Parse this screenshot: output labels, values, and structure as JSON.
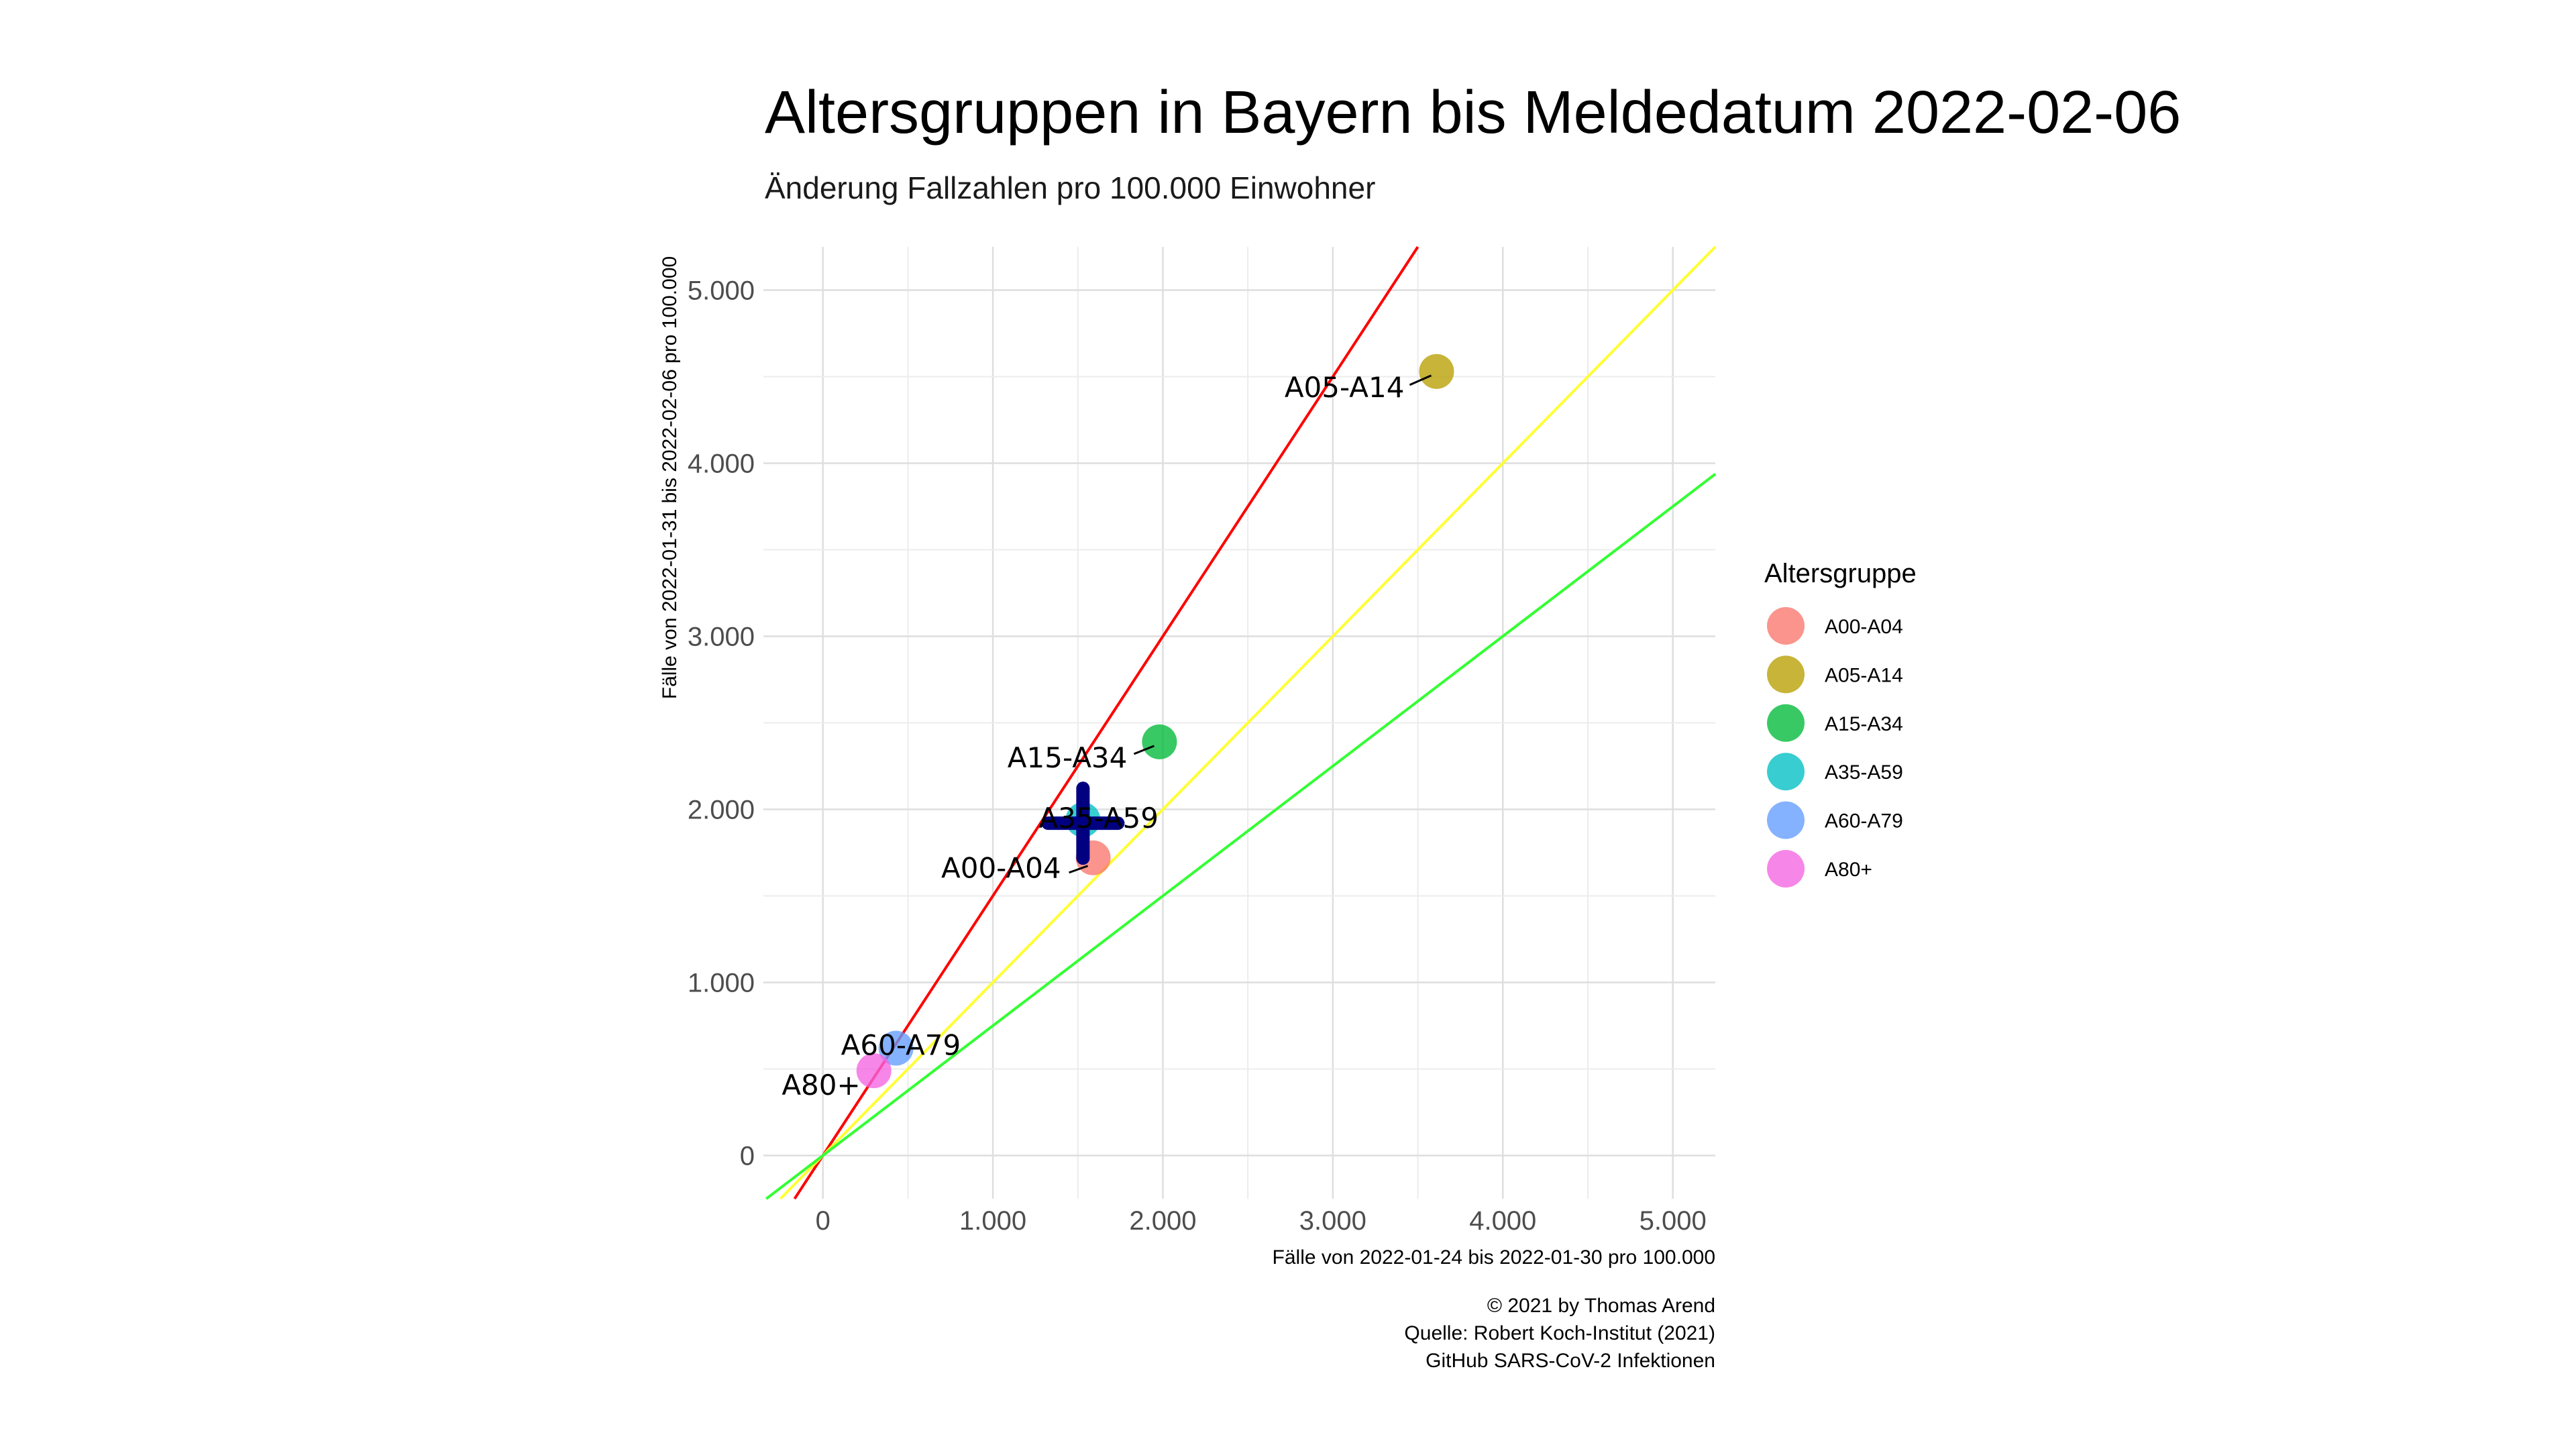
{
  "title": "Altersgruppen in Bayern bis Meldedatum 2022-02-06",
  "subtitle": "Änderung Fallzahlen pro 100.000 Einwohner",
  "caption": [
    "© 2021 by Thomas Arend",
    "Quelle: Robert Koch-Institut (2021)",
    "GitHub SARS-CoV-2 Infektionen"
  ],
  "chart_data": {
    "type": "scatter",
    "xlabel": "Fälle von 2022-01-24 bis 2022-01-30 pro 100.000",
    "ylabel": "Fälle von 2022-01-31 bis 2022-02-06 pro 100.000",
    "xlim": [
      -350,
      5250
    ],
    "ylim": [
      -250,
      5250
    ],
    "x_ticks": [
      0,
      1000,
      2000,
      3000,
      4000,
      5000
    ],
    "y_ticks": [
      0,
      1000,
      2000,
      3000,
      4000,
      5000
    ],
    "x_tick_labels": [
      "0",
      "1.000",
      "2.000",
      "3.000",
      "4.000",
      "5.000"
    ],
    "y_tick_labels": [
      "0",
      "1.000",
      "2.000",
      "3.000",
      "4.000",
      "5.000"
    ],
    "grid": true,
    "legend_title": "Altersgruppe",
    "legend_position": "right",
    "points": [
      {
        "name": "A00-A04",
        "x": 1590,
        "y": 1720,
        "color": "#F8766D"
      },
      {
        "name": "A05-A14",
        "x": 3610,
        "y": 4530,
        "color": "#B79F00"
      },
      {
        "name": "A15-A34",
        "x": 1980,
        "y": 2390,
        "color": "#00BA38"
      },
      {
        "name": "A35-A59",
        "x": 1530,
        "y": 1940,
        "color": "#00BFC4"
      },
      {
        "name": "A60-A79",
        "x": 430,
        "y": 620,
        "color": "#619CFF"
      },
      {
        "name": "A80+",
        "x": 300,
        "y": 490,
        "color": "#F564E3"
      }
    ],
    "reference_lines": [
      {
        "slope": 1.5,
        "color": "#FF0000"
      },
      {
        "slope": 1.0,
        "color": "#FFFF33"
      },
      {
        "slope": 0.75,
        "color": "#33FF33"
      }
    ],
    "mean_marker": {
      "x": 1530,
      "y": 1920,
      "color": "#000080"
    }
  }
}
